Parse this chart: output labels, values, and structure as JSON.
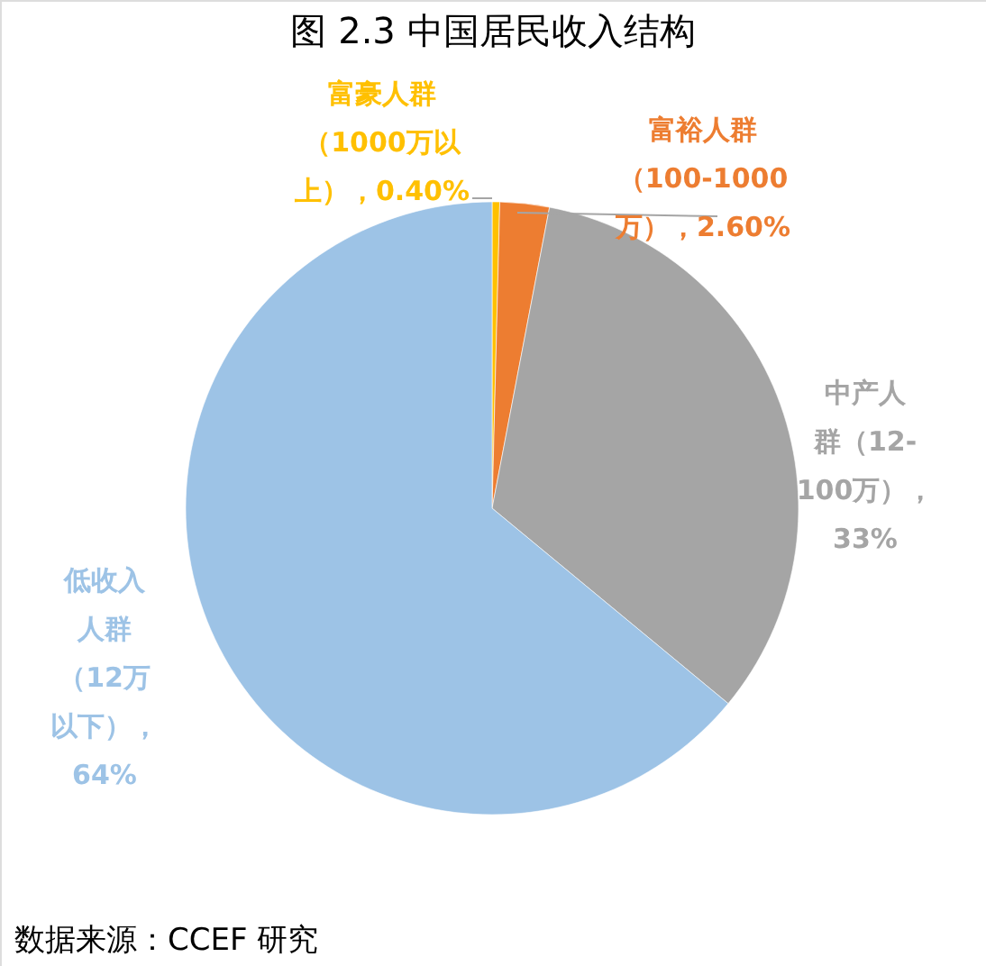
{
  "chart_data": {
    "type": "pie",
    "title": "图 2.3  中国居民收入结构",
    "categories": [
      "富豪人群（1000万以上），0.40%",
      "富裕人群（100-1000万），2.60%",
      "中产人群（12-100万），33%",
      "低收入人群（12万以下），64%"
    ],
    "values": [
      0.4,
      2.6,
      33,
      64
    ],
    "colors": [
      "#ffc000",
      "#ed7d31",
      "#a5a5a5",
      "#9dc3e6"
    ],
    "legend": false,
    "annotations": [
      "数据来源：CCEF 研究"
    ]
  }
}
